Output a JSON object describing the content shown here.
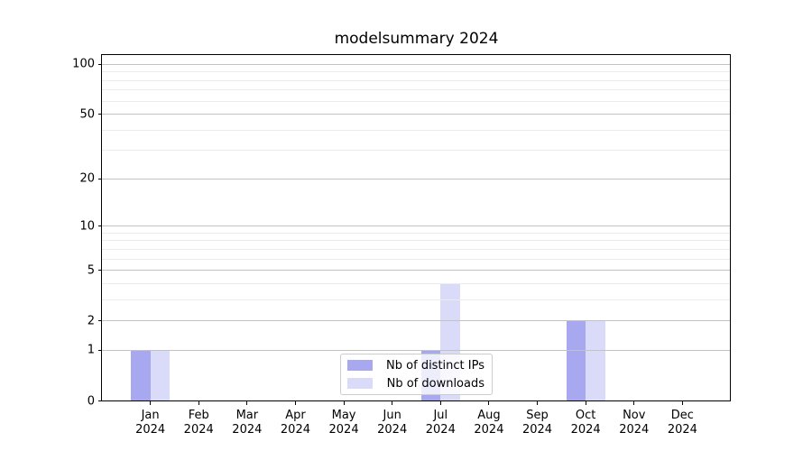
{
  "chart": {
    "title": "modelsummary 2024"
  },
  "chart_data": {
    "type": "bar",
    "title": "modelsummary 2024",
    "categories": [
      "Jan",
      "Feb",
      "Mar",
      "Apr",
      "May",
      "Jun",
      "Jul",
      "Aug",
      "Sep",
      "Oct",
      "Nov",
      "Dec"
    ],
    "category_year": "2024",
    "series": [
      {
        "name": "Nb of distinct IPs",
        "color": "#a7a8f0",
        "values": [
          1,
          0,
          0,
          0,
          0,
          0,
          1,
          0,
          0,
          2,
          0,
          0
        ]
      },
      {
        "name": "Nb of downloads",
        "color": "#d9dbf8",
        "values": [
          1,
          0,
          0,
          0,
          0,
          0,
          4,
          0,
          0,
          2,
          0,
          0
        ]
      }
    ],
    "xlabel": "",
    "ylabel": "",
    "yscale": "log1p",
    "ylim": [
      0,
      114
    ],
    "yticks": [
      0,
      1,
      2,
      5,
      10,
      20,
      50,
      100
    ],
    "minor_gridlines": [
      3,
      4,
      6,
      7,
      8,
      9,
      30,
      40,
      60,
      70,
      80,
      90
    ],
    "grid": "horizontal",
    "legend_position": "lower-center-inside",
    "bar_width_fraction": 0.4
  },
  "colors": {
    "major_grid": "#c2c2c2",
    "minor_grid": "#ececec",
    "spine": "#000000",
    "legend_border": "#cccccc",
    "background": "#ffffff"
  }
}
